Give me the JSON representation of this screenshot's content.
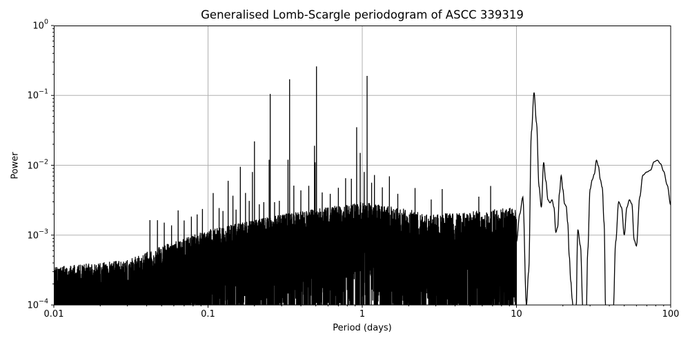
{
  "chart_data": {
    "type": "line",
    "title": "Generalised Lomb-Scargle periodogram of ASCC 339319",
    "xlabel": "Period (days)",
    "ylabel": "Power",
    "xscale": "log",
    "yscale": "log",
    "xlim": [
      0.01,
      100
    ],
    "ylim": [
      0.0001,
      1
    ],
    "grid": true,
    "legend": null,
    "line_color": "#000000",
    "grid_color": "#b0b0b0",
    "x_ticks": [
      {
        "value": 0.01,
        "label": "0.01"
      },
      {
        "value": 0.1,
        "label": "0.1"
      },
      {
        "value": 1,
        "label": "1"
      },
      {
        "value": 10,
        "label": "10"
      },
      {
        "value": 100,
        "label": "100"
      }
    ],
    "y_ticks": [
      {
        "value": 1,
        "base": "10",
        "exp": "0"
      },
      {
        "value": 0.1,
        "base": "10",
        "exp": "−1"
      },
      {
        "value": 0.01,
        "base": "10",
        "exp": "−2"
      },
      {
        "value": 0.001,
        "base": "10",
        "exp": "−3"
      },
      {
        "value": 0.0001,
        "base": "10",
        "exp": "−4"
      }
    ],
    "prominent_peaks": [
      {
        "period": 0.108,
        "power": 0.004
      },
      {
        "period": 0.135,
        "power": 0.006
      },
      {
        "period": 0.162,
        "power": 0.0095
      },
      {
        "period": 0.2,
        "power": 0.022
      },
      {
        "period": 0.253,
        "power": 0.105
      },
      {
        "period": 0.338,
        "power": 0.17
      },
      {
        "period": 0.505,
        "power": 0.26
      },
      {
        "period": 0.92,
        "power": 0.035
      },
      {
        "period": 1.075,
        "power": 0.19
      }
    ],
    "secondary_peaks": [
      {
        "period": 0.194,
        "power": 0.008
      },
      {
        "period": 0.249,
        "power": 0.012
      },
      {
        "period": 0.33,
        "power": 0.012
      },
      {
        "period": 0.495,
        "power": 0.011
      },
      {
        "period": 0.49,
        "power": 0.019
      },
      {
        "period": 0.97,
        "power": 0.015
      },
      {
        "period": 1.03,
        "power": 0.008
      }
    ],
    "long_period_curve": {
      "period": [
        10.0,
        10.5,
        11.0,
        11.6,
        12.0,
        12.5,
        13.0,
        13.5,
        14.0,
        14.5,
        15.0,
        15.5,
        16.0,
        16.5,
        17.0,
        17.5,
        18.0,
        18.5,
        19.0,
        19.5,
        20.0,
        20.5,
        21.0,
        21.5,
        22.0,
        22.5,
        23.0,
        24.0,
        25.0,
        26.0,
        27.0,
        28.0,
        29.0,
        30.0,
        31.0,
        32.0,
        33.0,
        34.0,
        35.0,
        36.0,
        37.0,
        38.0,
        39.0,
        40.0,
        42.0,
        44.0,
        46.0,
        48.0,
        50.0,
        52.0,
        54.0,
        56.0,
        58.0,
        60.0,
        63.0,
        66.0,
        70.0,
        74.0,
        78.0,
        82.0,
        86.0,
        90.0,
        95.0,
        100.0
      ],
      "power": [
        0.0008,
        0.002,
        0.0035,
        0.0001,
        0.0003,
        0.03,
        0.11,
        0.04,
        0.005,
        0.0025,
        0.011,
        0.006,
        0.0032,
        0.0029,
        0.0032,
        0.0025,
        0.0011,
        0.0013,
        0.004,
        0.0071,
        0.0045,
        0.0028,
        0.0026,
        0.0015,
        0.0005,
        0.00022,
        0.00012,
        1e-05,
        0.0012,
        0.0007,
        8e-05,
        1e-05,
        0.0006,
        0.0045,
        0.0062,
        0.0075,
        0.0118,
        0.0097,
        0.0062,
        0.0048,
        0.0015,
        5e-05,
        0.0001,
        3e-05,
        3e-05,
        0.0008,
        0.003,
        0.0025,
        0.001,
        0.0025,
        0.0032,
        0.0028,
        0.00085,
        0.0007,
        0.0035,
        0.0072,
        0.008,
        0.0085,
        0.0112,
        0.0118,
        0.0105,
        0.0082,
        0.0052,
        0.0027
      ]
    },
    "noise_floor": {
      "description": "dense aliased noise forest rising from ~3e-4 at 0.01 d to ~2e-3 near 1-3 d",
      "envelope": [
        {
          "period": 0.01,
          "power": 0.00035
        },
        {
          "period": 0.03,
          "power": 0.00045
        },
        {
          "period": 0.05,
          "power": 0.0007
        },
        {
          "period": 0.1,
          "power": 0.0012
        },
        {
          "period": 0.3,
          "power": 0.002
        },
        {
          "period": 1.0,
          "power": 0.003
        },
        {
          "period": 3.0,
          "power": 0.002
        },
        {
          "period": 10.0,
          "power": 0.0025
        }
      ]
    }
  }
}
